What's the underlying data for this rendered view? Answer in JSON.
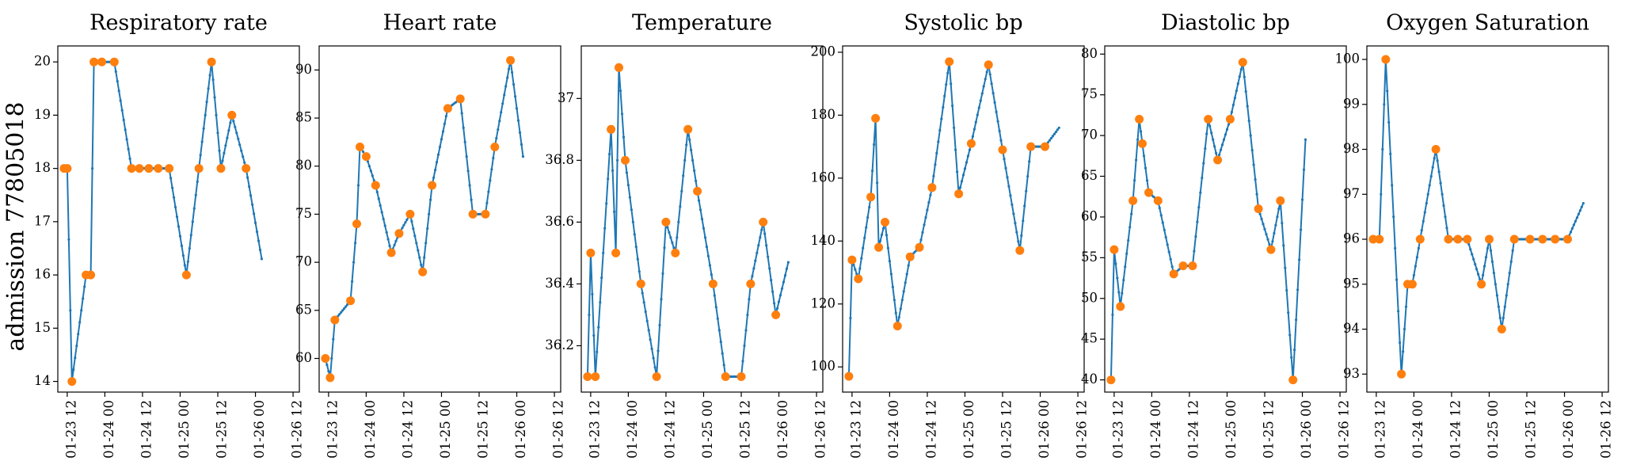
{
  "row_label": "admission 77805018",
  "colors": {
    "line": "#1f77b4",
    "points": "#ff7f0e",
    "axis": "#000000"
  },
  "chart_data": [
    {
      "type": "line",
      "title": "Respiratory rate",
      "x_tick_labels": [
        "01-23 12",
        "01-24 00",
        "01-24 12",
        "01-25 00",
        "01-25 12",
        "01-26 00",
        "01-26 12"
      ],
      "xlim_hours": [
        -3,
        74
      ],
      "ylim": [
        13.8,
        20.3
      ],
      "yticks": [
        14,
        15,
        16,
        17,
        18,
        19,
        20
      ],
      "series": [
        {
          "values": [
            [
              -1,
              18
            ],
            [
              0,
              18
            ],
            [
              1.5,
              14
            ],
            [
              6,
              16
            ],
            [
              7.5,
              16
            ],
            [
              8.5,
              20
            ],
            [
              11,
              20
            ],
            [
              15,
              20
            ],
            [
              20.5,
              18
            ],
            [
              23,
              18
            ],
            [
              26,
              18
            ],
            [
              29,
              18
            ],
            [
              32.5,
              18
            ],
            [
              38,
              16
            ],
            [
              42,
              18
            ],
            [
              46,
              20
            ],
            [
              49,
              18
            ],
            [
              52.5,
              19
            ],
            [
              57,
              18
            ],
            [
              62,
              16.3
            ]
          ]
        }
      ],
      "observations": [
        [
          -1,
          18
        ],
        [
          0,
          18
        ],
        [
          1.5,
          14
        ],
        [
          6,
          16
        ],
        [
          7.5,
          16
        ],
        [
          8.5,
          20
        ],
        [
          11,
          20
        ],
        [
          15,
          20
        ],
        [
          20.5,
          18
        ],
        [
          23,
          18
        ],
        [
          26,
          18
        ],
        [
          29,
          18
        ],
        [
          32.5,
          18
        ],
        [
          38,
          16
        ],
        [
          42,
          18
        ],
        [
          46,
          20
        ],
        [
          49,
          18
        ],
        [
          52.5,
          19
        ],
        [
          57,
          18
        ]
      ]
    },
    {
      "type": "line",
      "title": "Heart rate",
      "x_tick_labels": [
        "01-23 12",
        "01-24 00",
        "01-24 12",
        "01-25 00",
        "01-25 12",
        "01-26 00",
        "01-26 12"
      ],
      "xlim_hours": [
        -3,
        74
      ],
      "ylim": [
        56.5,
        92.5
      ],
      "yticks": [
        60,
        65,
        70,
        75,
        80,
        85,
        90
      ],
      "series": [
        {
          "values": [
            [
              -1,
              60
            ],
            [
              0.5,
              58
            ],
            [
              2,
              64
            ],
            [
              7,
              66
            ],
            [
              9,
              74
            ],
            [
              10,
              82
            ],
            [
              12,
              81
            ],
            [
              15,
              78
            ],
            [
              20,
              71
            ],
            [
              22.5,
              73
            ],
            [
              26,
              75
            ],
            [
              30,
              69
            ],
            [
              33,
              78
            ],
            [
              38,
              86
            ],
            [
              42,
              87
            ],
            [
              46,
              75
            ],
            [
              50,
              75
            ],
            [
              53,
              82
            ],
            [
              58,
              91
            ],
            [
              62,
              81
            ]
          ]
        }
      ],
      "observations": [
        [
          -1,
          60
        ],
        [
          0.5,
          58
        ],
        [
          2,
          64
        ],
        [
          7,
          66
        ],
        [
          9,
          74
        ],
        [
          10,
          82
        ],
        [
          12,
          81
        ],
        [
          15,
          78
        ],
        [
          20,
          71
        ],
        [
          22.5,
          73
        ],
        [
          26,
          75
        ],
        [
          30,
          69
        ],
        [
          33,
          78
        ],
        [
          38,
          86
        ],
        [
          42,
          87
        ],
        [
          46,
          75
        ],
        [
          50,
          75
        ],
        [
          53,
          82
        ],
        [
          58,
          91
        ]
      ]
    },
    {
      "type": "line",
      "title": "Temperature",
      "x_tick_labels": [
        "01-23 12",
        "01-24 00",
        "01-24 12",
        "01-25 00",
        "01-25 12",
        "01-26 00",
        "01-26 12"
      ],
      "xlim_hours": [
        -3,
        74
      ],
      "ylim": [
        36.05,
        37.17
      ],
      "yticks": [
        36.2,
        36.4,
        36.6,
        36.8,
        37.0
      ],
      "series": [
        {
          "values": [
            [
              -1,
              36.1
            ],
            [
              0,
              36.5
            ],
            [
              1.5,
              36.1
            ],
            [
              6.5,
              36.9
            ],
            [
              8,
              36.5
            ],
            [
              9,
              37.1
            ],
            [
              11,
              36.8
            ],
            [
              16,
              36.4
            ],
            [
              21,
              36.1
            ],
            [
              24,
              36.6
            ],
            [
              27,
              36.5
            ],
            [
              31,
              36.9
            ],
            [
              34,
              36.7
            ],
            [
              39,
              36.4
            ],
            [
              43,
              36.1
            ],
            [
              48,
              36.1
            ],
            [
              51,
              36.4
            ],
            [
              55,
              36.6
            ],
            [
              59,
              36.3
            ],
            [
              63,
              36.47
            ]
          ]
        }
      ],
      "observations": [
        [
          -1,
          36.1
        ],
        [
          0,
          36.5
        ],
        [
          1.5,
          36.1
        ],
        [
          6.5,
          36.9
        ],
        [
          8,
          36.5
        ],
        [
          9,
          37.1
        ],
        [
          11,
          36.8
        ],
        [
          16,
          36.4
        ],
        [
          21,
          36.1
        ],
        [
          24,
          36.6
        ],
        [
          27,
          36.5
        ],
        [
          31,
          36.9
        ],
        [
          34,
          36.7
        ],
        [
          39,
          36.4
        ],
        [
          43,
          36.1
        ],
        [
          48,
          36.1
        ],
        [
          51,
          36.4
        ],
        [
          55,
          36.6
        ],
        [
          59,
          36.3
        ]
      ]
    },
    {
      "type": "line",
      "title": "Systolic bp",
      "x_tick_labels": [
        "01-23 12",
        "01-24 00",
        "01-24 12",
        "01-25 00",
        "01-25 12",
        "01-26 00",
        "01-26 12"
      ],
      "xlim_hours": [
        -3,
        74
      ],
      "ylim": [
        92,
        202
      ],
      "yticks": [
        100,
        120,
        140,
        160,
        180,
        200
      ],
      "series": [
        {
          "values": [
            [
              -1,
              97
            ],
            [
              0,
              134
            ],
            [
              2,
              128
            ],
            [
              6,
              154
            ],
            [
              7.5,
              179
            ],
            [
              8.5,
              138
            ],
            [
              10.5,
              146
            ],
            [
              14.5,
              113
            ],
            [
              18.5,
              135
            ],
            [
              21.5,
              138
            ],
            [
              25.5,
              157
            ],
            [
              31,
              197
            ],
            [
              34,
              155
            ],
            [
              38,
              171
            ],
            [
              43.5,
              196
            ],
            [
              48,
              169
            ],
            [
              53.5,
              137
            ],
            [
              57,
              170
            ],
            [
              61.5,
              170
            ],
            [
              66,
              176
            ]
          ]
        }
      ],
      "observations": [
        [
          -1,
          97
        ],
        [
          0,
          134
        ],
        [
          2,
          128
        ],
        [
          6,
          154
        ],
        [
          7.5,
          179
        ],
        [
          8.5,
          138
        ],
        [
          10.5,
          146
        ],
        [
          14.5,
          113
        ],
        [
          18.5,
          135
        ],
        [
          21.5,
          138
        ],
        [
          25.5,
          157
        ],
        [
          31,
          197
        ],
        [
          34,
          155
        ],
        [
          38,
          171
        ],
        [
          43.5,
          196
        ],
        [
          48,
          169
        ],
        [
          53.5,
          137
        ],
        [
          57,
          170
        ],
        [
          61.5,
          170
        ]
      ]
    },
    {
      "type": "line",
      "title": "Diastolic bp",
      "x_tick_labels": [
        "01-23 12",
        "01-24 00",
        "01-24 12",
        "01-25 00",
        "01-25 12",
        "01-26 00",
        "01-26 12"
      ],
      "xlim_hours": [
        -3,
        74
      ],
      "ylim": [
        38.5,
        81
      ],
      "yticks": [
        40,
        45,
        50,
        55,
        60,
        65,
        70,
        75,
        80
      ],
      "series": [
        {
          "values": [
            [
              -1,
              40
            ],
            [
              0,
              56
            ],
            [
              2,
              49
            ],
            [
              6,
              62
            ],
            [
              8,
              72
            ],
            [
              9,
              69
            ],
            [
              11,
              63
            ],
            [
              14,
              62
            ],
            [
              19,
              53
            ],
            [
              22,
              54
            ],
            [
              25,
              54
            ],
            [
              30,
              72
            ],
            [
              33,
              67
            ],
            [
              37,
              72
            ],
            [
              41,
              79
            ],
            [
              46,
              61
            ],
            [
              50,
              56
            ],
            [
              53,
              62
            ],
            [
              57,
              40
            ],
            [
              61,
              69.5
            ]
          ]
        }
      ],
      "observations": [
        [
          -1,
          40
        ],
        [
          0,
          56
        ],
        [
          2,
          49
        ],
        [
          6,
          62
        ],
        [
          8,
          72
        ],
        [
          9,
          69
        ],
        [
          11,
          63
        ],
        [
          14,
          62
        ],
        [
          19,
          53
        ],
        [
          22,
          54
        ],
        [
          25,
          54
        ],
        [
          30,
          72
        ],
        [
          33,
          67
        ],
        [
          37,
          72
        ],
        [
          41,
          79
        ],
        [
          46,
          61
        ],
        [
          50,
          56
        ],
        [
          53,
          62
        ],
        [
          57,
          40
        ]
      ]
    },
    {
      "type": "line",
      "title": "Oxygen Saturation",
      "x_tick_labels": [
        "01-23 12",
        "01-24 00",
        "01-24 12",
        "01-25 00",
        "01-25 12",
        "01-26 00",
        "01-26 12"
      ],
      "xlim_hours": [
        -3,
        74
      ],
      "ylim": [
        92.6,
        100.3
      ],
      "yticks": [
        93,
        94,
        95,
        96,
        97,
        98,
        99,
        100
      ],
      "series": [
        {
          "values": [
            [
              -1,
              96
            ],
            [
              1,
              96
            ],
            [
              3,
              100
            ],
            [
              8,
              93
            ],
            [
              10,
              95
            ],
            [
              11.5,
              95
            ],
            [
              14,
              96
            ],
            [
              19,
              98
            ],
            [
              23,
              96
            ],
            [
              26,
              96
            ],
            [
              29,
              96
            ],
            [
              33.5,
              95
            ],
            [
              36,
              96
            ],
            [
              40,
              94
            ],
            [
              44,
              96
            ],
            [
              49,
              96
            ],
            [
              53,
              96
            ],
            [
              57,
              96
            ],
            [
              61,
              96
            ],
            [
              66,
              96.8
            ]
          ]
        }
      ],
      "observations": [
        [
          -1,
          96
        ],
        [
          1,
          96
        ],
        [
          3,
          100
        ],
        [
          8,
          93
        ],
        [
          10,
          95
        ],
        [
          11.5,
          95
        ],
        [
          14,
          96
        ],
        [
          19,
          98
        ],
        [
          23,
          96
        ],
        [
          26,
          96
        ],
        [
          29,
          96
        ],
        [
          33.5,
          95
        ],
        [
          36,
          96
        ],
        [
          40,
          94
        ],
        [
          44,
          96
        ],
        [
          49,
          96
        ],
        [
          53,
          96
        ],
        [
          57,
          96
        ],
        [
          61,
          96
        ]
      ]
    }
  ]
}
